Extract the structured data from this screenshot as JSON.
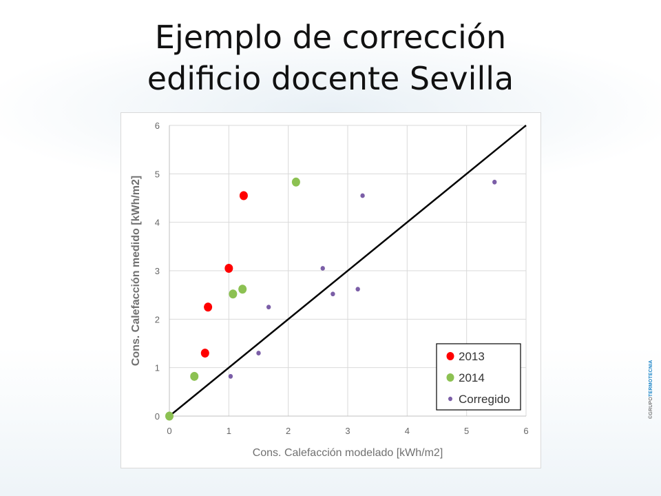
{
  "slide": {
    "title_line1": "Ejemplo de corrección",
    "title_line2": "edificio docente Sevilla",
    "brand_prefix": "©GRUPO",
    "brand_name": "TERMOTECNIA"
  },
  "chart_data": {
    "type": "scatter",
    "title": "",
    "xlabel": "Cons. Calefacción modelado [kWh/m2]",
    "ylabel": "Cons. Calefacción medido  [kWh/m2]",
    "xlim": [
      0,
      6
    ],
    "ylim": [
      0,
      6
    ],
    "x_ticks": [
      "0",
      "1",
      "2",
      "3",
      "4",
      "5",
      "6"
    ],
    "y_ticks": [
      "0",
      "1",
      "2",
      "3",
      "4",
      "5",
      "6"
    ],
    "grid": true,
    "legend_position": "bottom-right",
    "reference_line": {
      "from": [
        0,
        0
      ],
      "to": [
        6,
        6
      ],
      "color": "#000000"
    },
    "series": [
      {
        "name": "2013",
        "color": "#ff0000",
        "marker": "large",
        "points": [
          [
            0.6,
            1.3
          ],
          [
            0.65,
            2.25
          ],
          [
            1.0,
            3.05
          ],
          [
            1.25,
            4.55
          ]
        ]
      },
      {
        "name": "2014",
        "color": "#8cc152",
        "marker": "large",
        "points": [
          [
            0.0,
            0.0
          ],
          [
            0.42,
            0.82
          ],
          [
            1.07,
            2.52
          ],
          [
            1.23,
            2.62
          ],
          [
            2.13,
            4.83
          ]
        ]
      },
      {
        "name": "Corregido",
        "color": "#7b5ea7",
        "marker": "small",
        "points": [
          [
            1.03,
            0.82
          ],
          [
            1.5,
            1.3
          ],
          [
            1.67,
            2.25
          ],
          [
            2.58,
            3.05
          ],
          [
            2.75,
            2.52
          ],
          [
            3.17,
            2.62
          ],
          [
            3.25,
            4.55
          ],
          [
            5.47,
            4.83
          ]
        ]
      }
    ]
  }
}
